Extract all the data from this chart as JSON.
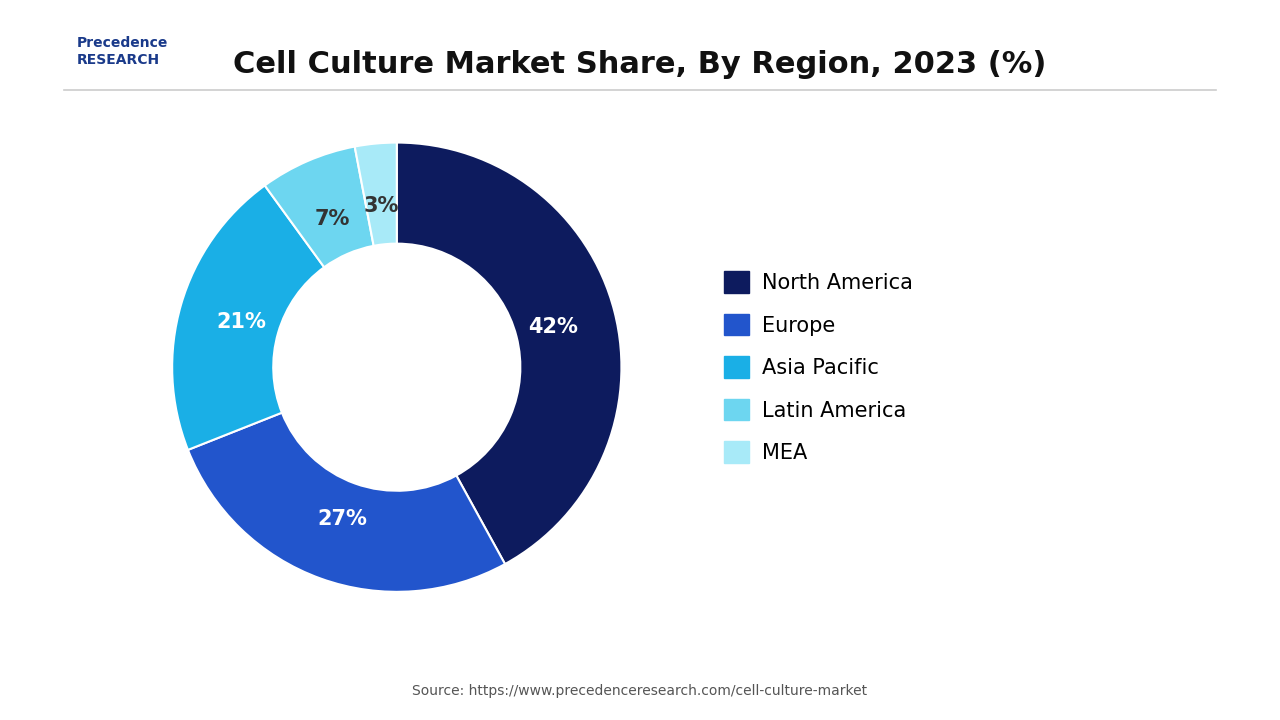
{
  "title": "Cell Culture Market Share, By Region, 2023 (%)",
  "slices": [
    42,
    27,
    21,
    7,
    3
  ],
  "labels": [
    "North America",
    "Europe",
    "Asia Pacific",
    "Latin America",
    "MEA"
  ],
  "colors": [
    "#0d1b5e",
    "#2255cc",
    "#1aafe6",
    "#6dd6f0",
    "#a8eaf8"
  ],
  "pct_labels": [
    "42%",
    "27%",
    "21%",
    "7%",
    "3%"
  ],
  "source_text": "Source: https://www.precedenceresearch.com/cell-culture-market",
  "bg_color": "#ffffff",
  "title_fontsize": 22,
  "legend_fontsize": 15,
  "pct_fontsize": 15
}
